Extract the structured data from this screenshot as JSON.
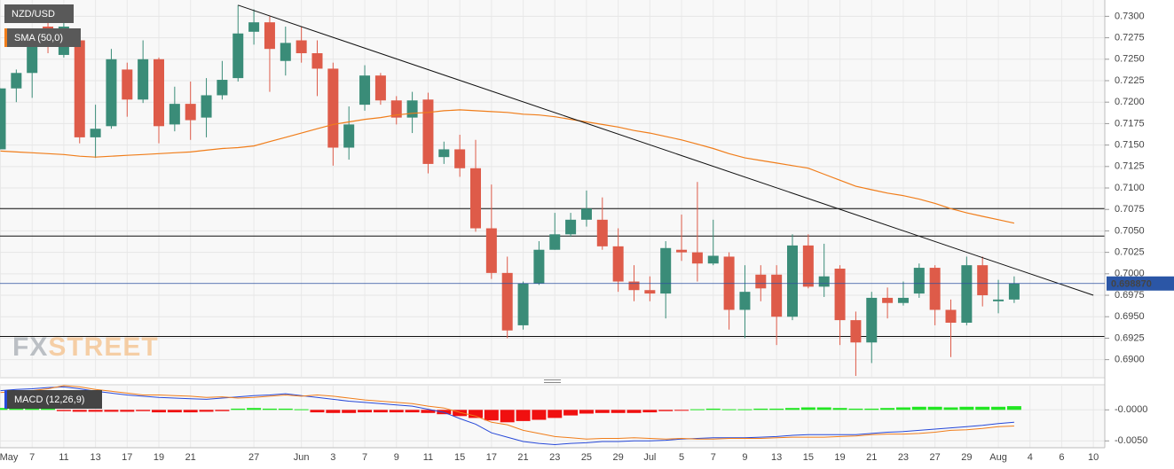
{
  "chart_data": [
    {
      "type": "candlestick",
      "title": "NZD/USD",
      "categories": [
        "May",
        null,
        "7",
        null,
        "11",
        null,
        "13",
        null,
        "17",
        null,
        "19",
        null,
        "21",
        null,
        null,
        null,
        "27",
        null,
        null,
        "Jun",
        null,
        "3",
        null,
        "7",
        null,
        "9",
        null,
        "11",
        null,
        "15",
        null,
        "17",
        null,
        "21",
        null,
        "23",
        null,
        "25",
        null,
        "29",
        null,
        "Jul",
        null,
        "5",
        null,
        "7",
        null,
        "9",
        null,
        "13",
        null,
        "15",
        null,
        "19",
        null,
        "21",
        null,
        "23",
        null,
        "27",
        null,
        "29",
        null,
        "Aug",
        null,
        "4",
        null,
        "6",
        null,
        "10"
      ],
      "open": [
        0.7145,
        0.7216,
        0.7234,
        0.7288,
        0.7255,
        0.7272,
        0.7159,
        0.7172,
        0.7238,
        0.7203,
        0.725,
        0.7174,
        0.7198,
        0.7182,
        0.7208,
        0.7228,
        0.7282,
        0.7293,
        0.7248,
        0.7272,
        0.7257,
        0.7239,
        0.7147,
        0.7197,
        0.7231,
        0.7202,
        0.7182,
        0.7203,
        0.7136,
        0.7145,
        0.7123,
        0.7053,
        0.7001,
        0.694,
        0.6989,
        0.7028,
        0.7046,
        0.7063,
        0.7063,
        0.7032,
        0.6991,
        0.6981,
        0.6977,
        0.7028,
        0.7025,
        0.7012,
        0.702,
        0.6958,
        0.6999,
        0.6999,
        0.695,
        0.7033,
        0.6985,
        0.7006,
        0.6946,
        0.692,
        0.6972,
        0.6966,
        0.6977,
        0.7007,
        0.6958,
        0.6943,
        0.701,
        0.6968,
        0.697,
        null,
        null,
        null,
        null,
        null
      ],
      "high": [
        0.7216,
        0.7238,
        0.7277,
        0.7298,
        0.7303,
        0.7282,
        0.7197,
        0.7262,
        0.7246,
        0.7272,
        0.7252,
        0.7218,
        0.7224,
        0.7228,
        0.7248,
        0.7313,
        0.7308,
        0.73,
        0.7288,
        0.7288,
        0.7272,
        0.7246,
        0.7195,
        0.7243,
        0.7234,
        0.7207,
        0.7212,
        0.7211,
        0.7154,
        0.7162,
        0.7156,
        0.7104,
        0.702,
        0.6991,
        0.7038,
        0.7071,
        0.7071,
        0.7097,
        0.7089,
        0.7053,
        0.701,
        0.6997,
        0.7038,
        0.7069,
        0.7107,
        0.7063,
        0.7025,
        0.701,
        0.701,
        0.701,
        0.7046,
        0.7046,
        0.7035,
        0.701,
        0.6956,
        0.6979,
        0.6984,
        0.6991,
        0.7012,
        0.701,
        0.697,
        0.702,
        0.702,
        0.6993,
        0.6997,
        null,
        null,
        null,
        null,
        null
      ],
      "low": [
        0.7145,
        0.72,
        0.7205,
        0.7257,
        0.7252,
        0.7152,
        0.7135,
        0.7169,
        0.7183,
        0.7199,
        0.7152,
        0.7166,
        0.7156,
        0.7159,
        0.7203,
        0.7224,
        0.7267,
        0.7212,
        0.7231,
        0.7246,
        0.7207,
        0.7126,
        0.7133,
        0.719,
        0.7197,
        0.7174,
        0.7164,
        0.7117,
        0.7128,
        0.7113,
        0.7049,
        0.6994,
        0.6925,
        0.6935,
        0.6987,
        0.7028,
        0.7043,
        0.7055,
        0.7028,
        0.6979,
        0.6968,
        0.6968,
        0.6948,
        0.7015,
        0.6991,
        0.701,
        0.6935,
        0.6925,
        0.6968,
        0.6917,
        0.6946,
        0.6983,
        0.6973,
        0.6917,
        0.6881,
        0.6896,
        0.6948,
        0.6963,
        0.6972,
        0.694,
        0.6903,
        0.694,
        0.6962,
        0.6954,
        0.6966,
        null,
        null,
        null,
        null,
        null
      ],
      "close": [
        0.7216,
        0.7234,
        0.7272,
        0.7265,
        0.7288,
        0.7159,
        0.7169,
        0.725,
        0.7203,
        0.725,
        0.7172,
        0.7198,
        0.7179,
        0.7208,
        0.7226,
        0.728,
        0.7293,
        0.7262,
        0.7269,
        0.7257,
        0.7239,
        0.7147,
        0.7174,
        0.7231,
        0.7202,
        0.7182,
        0.7202,
        0.7128,
        0.7145,
        0.7123,
        0.7053,
        0.7001,
        0.6934,
        0.6989,
        0.7028,
        0.7046,
        0.7063,
        0.7076,
        0.7032,
        0.6991,
        0.6981,
        0.6977,
        0.703,
        0.7025,
        0.7012,
        0.7021,
        0.6958,
        0.6979,
        0.6983,
        0.695,
        0.7033,
        0.6985,
        0.6997,
        0.6946,
        0.692,
        0.6972,
        0.6966,
        0.6972,
        0.7007,
        0.6958,
        0.6943,
        0.701,
        0.6975,
        0.697,
        0.6989,
        null,
        null,
        null,
        null,
        null
      ],
      "up_color": "#3a8c78",
      "down_color": "#de5b49",
      "sma": {
        "name": "SMA (50,0)",
        "color": "#f07d1a",
        "values": [
          0.7143,
          0.7142,
          0.7141,
          0.714,
          0.7139,
          0.7137,
          0.7136,
          0.7137,
          0.7138,
          0.7139,
          0.714,
          0.7141,
          0.7142,
          0.7144,
          0.7146,
          0.7147,
          0.7149,
          0.7154,
          0.7159,
          0.7164,
          0.7169,
          0.7174,
          0.7177,
          0.718,
          0.7182,
          0.7185,
          0.7187,
          0.7188,
          0.719,
          0.7191,
          0.719,
          0.7189,
          0.7188,
          0.7186,
          0.7185,
          0.7183,
          0.718,
          0.7177,
          0.7174,
          0.7171,
          0.7167,
          0.7164,
          0.716,
          0.7156,
          0.7151,
          0.7146,
          0.714,
          0.7135,
          0.7132,
          0.7129,
          0.7126,
          0.7123,
          0.7116,
          0.7109,
          0.7102,
          0.7098,
          0.7094,
          0.7091,
          0.7087,
          0.7082,
          0.7076,
          0.7071,
          0.7067,
          0.7063,
          0.7059,
          null,
          null,
          null,
          null,
          null
        ]
      },
      "trendline": {
        "x": [
          15,
          69
        ],
        "values": [
          0.7313,
          0.6975
        ]
      },
      "hlines": [
        0.7076,
        0.7044,
        0.6927
      ],
      "last_price": {
        "value": 0.69887,
        "label": "0.698870"
      },
      "watermark": [
        "FX",
        "STREET"
      ],
      "ylim": [
        0.688,
        0.7319
      ],
      "yticks": [
        {
          "value": 0.69,
          "label": "0.6900"
        },
        {
          "value": 0.6925,
          "label": "0.6925"
        },
        {
          "value": 0.695,
          "label": "0.6950"
        },
        {
          "value": 0.6975,
          "label": "0.6975"
        },
        {
          "value": 0.7,
          "label": "0.7000"
        },
        {
          "value": 0.7025,
          "label": "0.7025"
        },
        {
          "value": 0.705,
          "label": "0.7050"
        },
        {
          "value": 0.7075,
          "label": "0.7075"
        },
        {
          "value": 0.71,
          "label": "0.7100"
        },
        {
          "value": 0.7125,
          "label": "0.7125"
        },
        {
          "value": 0.715,
          "label": "0.7150"
        },
        {
          "value": 0.7175,
          "label": "0.7175"
        },
        {
          "value": 0.72,
          "label": "0.7200"
        },
        {
          "value": 0.7225,
          "label": "0.7225"
        },
        {
          "value": 0.725,
          "label": "0.7250"
        },
        {
          "value": 0.7275,
          "label": "0.7275"
        },
        {
          "value": 0.73,
          "label": "0.7300"
        }
      ],
      "grid": true
    },
    {
      "type": "macd",
      "title": "MACD (12,26,9)",
      "histogram": {
        "positive_color": "#22e622",
        "negative_color": "#f01010",
        "values": [
          0.0003,
          0.0003,
          0.0003,
          0.0002,
          -0.0002,
          -0.0003,
          -0.0003,
          -0.0003,
          -0.0003,
          -0.0002,
          -0.0004,
          -0.0004,
          -0.0004,
          -0.0003,
          -0.0002,
          0.0002,
          0.0003,
          0.0002,
          0.0002,
          0.0001,
          -0.0004,
          -0.0005,
          -0.0005,
          -0.0004,
          -0.0004,
          -0.0004,
          -0.0004,
          -0.0005,
          -0.0007,
          -0.001,
          -0.0013,
          -0.0017,
          -0.002,
          -0.0018,
          -0.0016,
          -0.0013,
          -0.0009,
          -0.0006,
          -0.0005,
          -0.0005,
          -0.0005,
          -0.0004,
          -0.0002,
          -0.0001,
          0.0001,
          0.0002,
          0.0001,
          0.0001,
          0.0002,
          0.0002,
          0.0003,
          0.0004,
          0.0004,
          0.0003,
          0.0002,
          0.0002,
          0.0003,
          0.0004,
          0.0005,
          0.0005,
          0.0004,
          0.0005,
          0.0005,
          0.0005,
          0.0006,
          null,
          null,
          null,
          null,
          null
        ]
      },
      "macd": {
        "color": "#2648d8",
        "values": [
          0.0031,
          0.0033,
          0.0034,
          0.0036,
          0.0037,
          0.0034,
          0.003,
          0.0027,
          0.0024,
          0.0022,
          0.002,
          0.0019,
          0.0018,
          0.0017,
          0.0019,
          0.0021,
          0.0023,
          0.0024,
          0.0026,
          0.0023,
          0.002,
          0.0017,
          0.0014,
          0.0012,
          0.001,
          0.0008,
          0.0006,
          0.0001,
          -0.0004,
          -0.0014,
          -0.0023,
          -0.0037,
          -0.0044,
          -0.0051,
          -0.0054,
          -0.0056,
          -0.0054,
          -0.0053,
          -0.0051,
          -0.0051,
          -0.005,
          -0.005,
          -0.0049,
          -0.0047,
          -0.0046,
          -0.0045,
          -0.0045,
          -0.0045,
          -0.0044,
          -0.0043,
          -0.0041,
          -0.004,
          -0.004,
          -0.004,
          -0.004,
          -0.0038,
          -0.0036,
          -0.0035,
          -0.0033,
          -0.0031,
          -0.0029,
          -0.0027,
          -0.0025,
          -0.0022,
          -0.002,
          null,
          null,
          null,
          null,
          null
        ]
      },
      "signal": {
        "color": "#f07d1a",
        "values": [
          0.0028,
          0.003,
          0.0031,
          0.0034,
          0.0039,
          0.0037,
          0.0033,
          0.003,
          0.0027,
          0.0024,
          0.0024,
          0.0023,
          0.0022,
          0.002,
          0.0021,
          0.0019,
          0.002,
          0.0022,
          0.0024,
          0.0022,
          0.0024,
          0.0022,
          0.0019,
          0.0016,
          0.0014,
          0.0012,
          0.001,
          0.0006,
          0.0003,
          -0.0004,
          -0.001,
          -0.002,
          -0.0024,
          -0.0033,
          -0.0038,
          -0.0043,
          -0.0045,
          -0.0047,
          -0.0046,
          -0.0046,
          -0.0045,
          -0.0046,
          -0.0047,
          -0.0046,
          -0.0047,
          -0.0047,
          -0.0046,
          -0.0046,
          -0.0046,
          -0.0045,
          -0.0044,
          -0.0044,
          -0.0044,
          -0.0043,
          -0.0042,
          -0.004,
          -0.0039,
          -0.0039,
          -0.0038,
          -0.0036,
          -0.0033,
          -0.0032,
          -0.003,
          -0.0027,
          -0.0026,
          null,
          null,
          null,
          null,
          null
        ]
      },
      "ylim": [
        -0.0061,
        0.0039
      ],
      "yticks": [
        {
          "value": 0,
          "label": "-0.0000"
        },
        {
          "value": -0.005,
          "label": "-0.0050"
        }
      ],
      "grid": true
    }
  ]
}
